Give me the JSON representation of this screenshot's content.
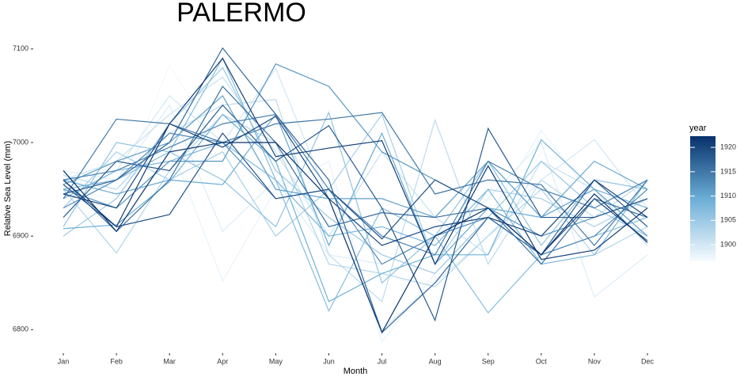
{
  "chart_data": {
    "type": "line",
    "title": "PALERMO",
    "x_label": "Month",
    "y_label": "Relative Sea Level (mm)",
    "categories": [
      "Jan",
      "Feb",
      "Mar",
      "Apr",
      "May",
      "Jun",
      "Jul",
      "Aug",
      "Sep",
      "Oct",
      "Nov",
      "Dec"
    ],
    "ylim": [
      6780,
      7110
    ],
    "yticks": [
      6800,
      6900,
      7000,
      7100
    ],
    "colorbar": {
      "title": "year",
      "lim": [
        1896.6,
        1922.3
      ],
      "ticks": [
        1900,
        1905,
        1910,
        1915,
        1920
      ],
      "colors": [
        "#f7fbff",
        "#6baed6",
        "#08306b"
      ]
    },
    "series": [
      {
        "year": 1897,
        "values": [
          6950,
          6940,
          7083,
          6990,
          6960,
          6930,
          6900,
          6880,
          6900,
          6990,
          6960,
          6920
        ]
      },
      {
        "year": 1898,
        "values": [
          6960,
          6950,
          7000,
          6852,
          6950,
          6980,
          6787,
          6860,
          6920,
          7013,
          6940,
          6900
        ]
      },
      {
        "year": 1899,
        "values": [
          6970,
          6960,
          7040,
          6905,
          6960,
          6880,
          6870,
          6900,
          6940,
          7000,
          6835,
          6880
        ]
      },
      {
        "year": 1900,
        "values": [
          6940,
          6970,
          7050,
          7000,
          7079,
          6940,
          6800,
          6850,
          6900,
          6960,
          7003,
          6930
        ]
      },
      {
        "year": 1901,
        "values": [
          6960,
          6980,
          7030,
          7070,
          6990,
          6900,
          6990,
          6920,
          6880,
          6980,
          6950,
          6890
        ]
      },
      {
        "year": 1902,
        "values": [
          6965,
          6950,
          7010,
          7040,
          7046,
          6880,
          6830,
          7024,
          6870,
          6960,
          6920,
          6960
        ]
      },
      {
        "year": 1903,
        "values": [
          6950,
          6882,
          6970,
          7030,
          7000,
          6870,
          6860,
          6846,
          6900,
          6950,
          6880,
          6910
        ]
      },
      {
        "year": 1904,
        "values": [
          6930,
          6990,
          6960,
          6990,
          6900,
          6950,
          7030,
          6870,
          6950,
          6940,
          6910,
          6940
        ]
      },
      {
        "year": 1905,
        "values": [
          6900,
          6940,
          7020,
          7080,
          6970,
          6920,
          6880,
          6860,
          6920,
          6980,
          6930,
          6900
        ]
      },
      {
        "year": 1906,
        "values": [
          6910,
          7000,
          6990,
          6960,
          6910,
          7032,
          6850,
          6900,
          6980,
          6890,
          6960,
          6950
        ]
      },
      {
        "year": 1907,
        "values": [
          6950,
          6960,
          6990,
          7090,
          6960,
          6820,
          6930,
          6900,
          6818,
          6880,
          6900,
          6920
        ]
      },
      {
        "year": 1908,
        "values": [
          6940,
          6970,
          6980,
          7000,
          6960,
          6900,
          6910,
          6890,
          6950,
          6870,
          6880,
          6960
        ]
      },
      {
        "year": 1909,
        "values": [
          6908,
          6912,
          6958,
          7030,
          6980,
          6830,
          6860,
          6880,
          6880,
          7003,
          6950,
          6930
        ]
      },
      {
        "year": 1910,
        "values": [
          6960,
          6945,
          6960,
          6955,
          7030,
          6890,
          7010,
          6870,
          6930,
          6920,
          6980,
          6950
        ]
      },
      {
        "year": 1911,
        "values": [
          6955,
          6980,
          7000,
          7050,
          6950,
          6940,
          6940,
          6920,
          6980,
          6920,
          6950,
          6900
        ]
      },
      {
        "year": 1912,
        "values": [
          6950,
          6930,
          6980,
          6980,
          7084,
          7060,
          6990,
          6960,
          6930,
          6900,
          6920,
          6940
        ]
      },
      {
        "year": 1913,
        "values": [
          6930,
          6960,
          7010,
          7000,
          6940,
          6950,
          6870,
          6900,
          6920,
          6880,
          6900,
          6950
        ]
      },
      {
        "year": 1914,
        "values": [
          6960,
          6970,
          6995,
          7020,
          7030,
          6950,
          6900,
          6880,
          6980,
          6950,
          6930,
          6960
        ]
      },
      {
        "year": 1915,
        "values": [
          6940,
          7025,
          7020,
          7000,
          7020,
          7025,
          7032,
          6945,
          6960,
          6955,
          6890,
          6960
        ]
      },
      {
        "year": 1916,
        "values": [
          6960,
          6905,
          6960,
          7060,
          7000,
          6910,
          6925,
          6920,
          6930,
          6870,
          6940,
          6920
        ]
      },
      {
        "year": 1917,
        "values": [
          6945,
          6960,
          7000,
          7101,
          7030,
          6960,
          6797,
          6850,
          6920,
          6880,
          6960,
          6910
        ]
      },
      {
        "year": 1918,
        "values": [
          6920,
          6980,
          6970,
          7040,
          6980,
          7018,
          6930,
          6810,
          7015,
          6920,
          6920,
          6940
        ]
      },
      {
        "year": 1919,
        "values": [
          6955,
          6910,
          6923,
          7010,
          6940,
          6950,
          6897,
          6960,
          6930,
          6880,
          6940,
          6895
        ]
      },
      {
        "year": 1920,
        "values": [
          6945,
          6930,
          7020,
          6995,
          7028,
          6940,
          6890,
          6910,
          6920,
          6900,
          6960,
          6920
        ]
      },
      {
        "year": 1921,
        "values": [
          6960,
          6910,
          7020,
          7090,
          6985,
          6994,
          7002,
          6870,
          6975,
          6875,
          6885,
          6930
        ]
      },
      {
        "year": 1922,
        "values": [
          6970,
          6905,
          6990,
          7000,
          7000,
          6940,
          6797,
          6900,
          6930,
          6880,
          6945,
          6893
        ]
      }
    ]
  }
}
